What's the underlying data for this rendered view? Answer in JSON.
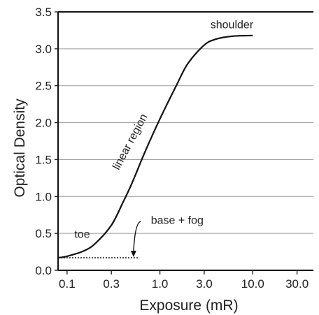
{
  "chart_data": {
    "type": "line",
    "title": "",
    "xlabel": "Exposure (mR)",
    "ylabel": "Optical Density",
    "x_scale": "log",
    "xlim": [
      0.08,
      45
    ],
    "ylim": [
      0.0,
      3.5
    ],
    "x_ticks": [
      {
        "value": 0.1,
        "label": "0.1"
      },
      {
        "value": 0.3,
        "label": "0.3"
      },
      {
        "value": 1.0,
        "label": "1.0"
      },
      {
        "value": 3.0,
        "label": "3.0"
      },
      {
        "value": 10.0,
        "label": "10.0"
      },
      {
        "value": 30.0,
        "label": "30.0"
      }
    ],
    "y_ticks": [
      {
        "value": 0.0,
        "label": "0.0"
      },
      {
        "value": 0.5,
        "label": "0.5"
      },
      {
        "value": 1.0,
        "label": "1.0"
      },
      {
        "value": 1.5,
        "label": "1.5"
      },
      {
        "value": 2.0,
        "label": "2.0"
      },
      {
        "value": 2.5,
        "label": "2.5"
      },
      {
        "value": 3.0,
        "label": "3.0"
      },
      {
        "value": 3.5,
        "label": "3.5"
      }
    ],
    "grid": "horizontal",
    "series": [
      {
        "points": [
          {
            "x": 0.08,
            "y": 0.17
          },
          {
            "x": 0.1,
            "y": 0.19
          },
          {
            "x": 0.15,
            "y": 0.26
          },
          {
            "x": 0.2,
            "y": 0.36
          },
          {
            "x": 0.3,
            "y": 0.61
          },
          {
            "x": 0.4,
            "y": 0.92
          },
          {
            "x": 0.5,
            "y": 1.18
          },
          {
            "x": 0.7,
            "y": 1.62
          },
          {
            "x": 1.0,
            "y": 2.05
          },
          {
            "x": 1.5,
            "y": 2.5
          },
          {
            "x": 2.0,
            "y": 2.8
          },
          {
            "x": 3.0,
            "y": 3.05
          },
          {
            "x": 4.0,
            "y": 3.13
          },
          {
            "x": 6.0,
            "y": 3.17
          },
          {
            "x": 10.0,
            "y": 3.18
          }
        ]
      }
    ],
    "base_fog": {
      "x_start": 0.08,
      "x_end": 0.6,
      "y": 0.17
    },
    "annotations": [
      {
        "text": "shoulder",
        "x": 3.5,
        "y": 3.28,
        "rotate": 0
      },
      {
        "text": "linear region",
        "x": 0.36,
        "y": 1.35,
        "rotate": -62
      },
      {
        "text": "toe",
        "x": 0.12,
        "y": 0.44,
        "rotate": 0
      },
      {
        "text": "base + fog",
        "x": 0.8,
        "y": 0.63,
        "rotate": 0
      }
    ],
    "base_fog_arrow": {
      "from_x": 0.62,
      "from_y": 0.66,
      "to_x": 0.52,
      "to_y": 0.18
    }
  }
}
